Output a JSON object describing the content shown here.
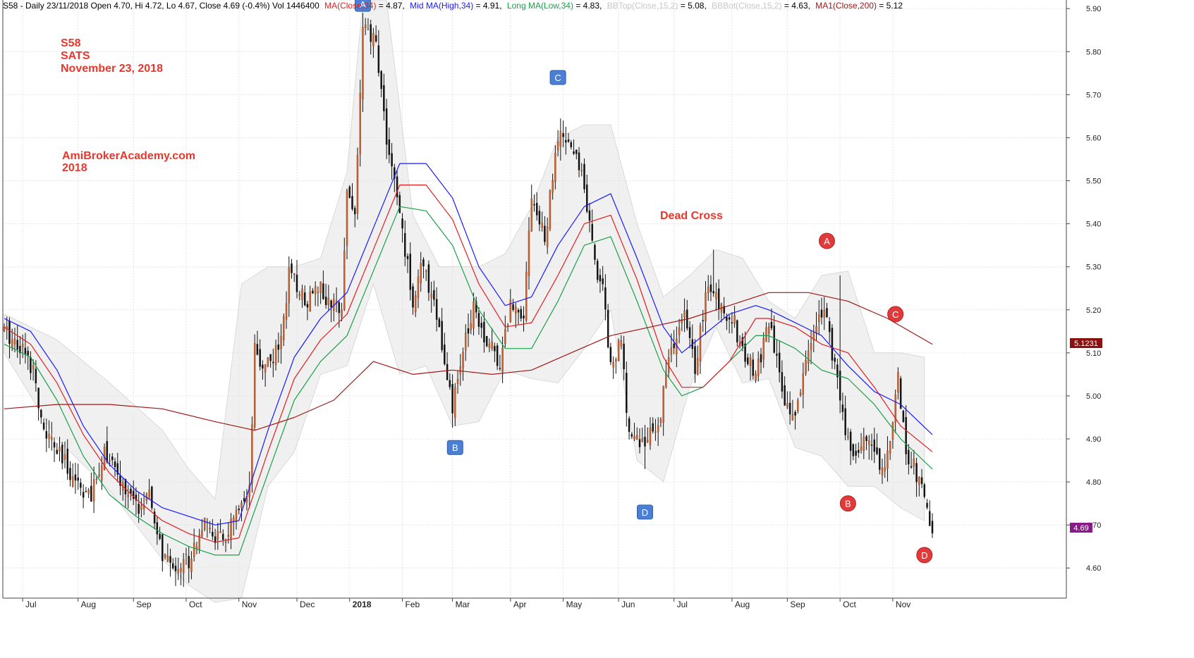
{
  "header": {
    "prefix": "S58 - Daily 23/11/2018 Open 4.70, Hi 4.72, Lo 4.67, Close 4.69 (-0.4%) Vol 1446400",
    "ma_label": "MA(Close,34)",
    "ma_value": " = 4.87,",
    "mid_label": "Mid MA(High,34)",
    "mid_value": " = 4.91,",
    "long_label": "Long MA(Low,34)",
    "long_value": " = 4.83,",
    "bbtop_label": "BBTop(Close,15,2)",
    "bbtop_value": " = 5.08,",
    "bbbot_label": "BBBot(Close,15,2)",
    "bbbot_value": " = 4.63,",
    "ma1_label": "MA1(Close,200)",
    "ma1_value": " = 5.12"
  },
  "annotations": {
    "ticker": "S58",
    "name": "SATS",
    "date": "November 23, 2018",
    "site": "AmiBrokerAcademy.com",
    "year": "2018",
    "dead_cross": "Dead Cross"
  },
  "price_tags": {
    "ma200": "5.1231",
    "last": "4.69"
  },
  "colors": {
    "ma34": "#e02020",
    "mid": "#1a1aff",
    "long": "#1aa04a",
    "ma200": "#a01818",
    "band_fill": "#e3e3e3",
    "candle": "#c86432",
    "blue_marker": "#4a7fd4",
    "red_marker": "#e03a3a",
    "annotation": "#e8372c"
  },
  "chart_data": {
    "type": "candlestick",
    "y_axis": {
      "min": 4.53,
      "max": 5.92,
      "ticks": [
        4.6,
        4.7,
        4.8,
        4.9,
        5.0,
        5.1,
        5.2,
        5.3,
        5.4,
        5.5,
        5.6,
        5.7,
        5.8,
        5.9
      ],
      "tick_labels": [
        "4.60",
        "4.70",
        "4.80",
        "4.90",
        "5.00",
        "5.10",
        "5.20",
        "5.30",
        "5.40",
        "5.50",
        "5.60",
        "5.70",
        "5.80",
        "5.90"
      ]
    },
    "x_axis": {
      "labels": [
        "Jul",
        "Aug",
        "Sep",
        "Oct",
        "Nov",
        "Dec",
        "2018",
        "Feb",
        "Mar",
        "Apr",
        "May",
        "Jun",
        "Jul",
        "Aug",
        "Sep",
        "Oct",
        "Nov"
      ],
      "bold": [
        false,
        false,
        false,
        false,
        false,
        false,
        true,
        false,
        false,
        false,
        false,
        false,
        false,
        false,
        false,
        false,
        false
      ],
      "index": [
        7,
        28,
        49,
        69,
        89,
        111,
        131,
        151,
        170,
        192,
        212,
        233,
        254,
        276,
        297,
        317,
        337
      ]
    },
    "close_path": [
      [
        0,
        5.15
      ],
      [
        6,
        5.12
      ],
      [
        12,
        5.05
      ],
      [
        14,
        4.93
      ],
      [
        22,
        4.85
      ],
      [
        28,
        4.8
      ],
      [
        33,
        4.76
      ],
      [
        38,
        4.88
      ],
      [
        42,
        4.82
      ],
      [
        50,
        4.74
      ],
      [
        55,
        4.76
      ],
      [
        60,
        4.63
      ],
      [
        63,
        4.6
      ],
      [
        70,
        4.62
      ],
      [
        75,
        4.7
      ],
      [
        83,
        4.66
      ],
      [
        88,
        4.72
      ],
      [
        91,
        4.74
      ],
      [
        93,
        4.77
      ],
      [
        95,
        5.1
      ],
      [
        97,
        5.07
      ],
      [
        104,
        5.1
      ],
      [
        108,
        5.28
      ],
      [
        115,
        5.22
      ],
      [
        118,
        5.27
      ],
      [
        124,
        5.2
      ],
      [
        128,
        5.22
      ],
      [
        130,
        5.48
      ],
      [
        133,
        5.42
      ],
      [
        136,
        5.85
      ],
      [
        141,
        5.82
      ],
      [
        145,
        5.6
      ],
      [
        150,
        5.42
      ],
      [
        155,
        5.22
      ],
      [
        158,
        5.3
      ],
      [
        163,
        5.23
      ],
      [
        168,
        5.03
      ],
      [
        170,
        4.97
      ],
      [
        174,
        5.1
      ],
      [
        178,
        5.22
      ],
      [
        182,
        5.14
      ],
      [
        188,
        5.08
      ],
      [
        192,
        5.21
      ],
      [
        197,
        5.2
      ],
      [
        200,
        5.47
      ],
      [
        205,
        5.36
      ],
      [
        210,
        5.6
      ],
      [
        215,
        5.58
      ],
      [
        220,
        5.5
      ],
      [
        224,
        5.3
      ],
      [
        227,
        5.26
      ],
      [
        230,
        5.07
      ],
      [
        234,
        5.13
      ],
      [
        236,
        4.95
      ],
      [
        241,
        4.89
      ],
      [
        248,
        4.92
      ],
      [
        251,
        5.06
      ],
      [
        255,
        5.14
      ],
      [
        258,
        5.18
      ],
      [
        262,
        5.07
      ],
      [
        267,
        5.26
      ],
      [
        272,
        5.2
      ],
      [
        276,
        5.19
      ],
      [
        280,
        5.1
      ],
      [
        285,
        5.05
      ],
      [
        290,
        5.17
      ],
      [
        294,
        5.04
      ],
      [
        299,
        4.94
      ],
      [
        303,
        5.05
      ],
      [
        308,
        5.17
      ],
      [
        311,
        5.22
      ],
      [
        315,
        5.06
      ],
      [
        318,
        4.95
      ],
      [
        322,
        4.86
      ],
      [
        328,
        4.91
      ],
      [
        333,
        4.83
      ],
      [
        337,
        4.92
      ],
      [
        339,
        5.05
      ],
      [
        342,
        4.87
      ],
      [
        346,
        4.82
      ],
      [
        349,
        4.75
      ],
      [
        352,
        4.69
      ]
    ],
    "ma34_path": [
      [
        0,
        5.16
      ],
      [
        10,
        5.12
      ],
      [
        20,
        5.03
      ],
      [
        30,
        4.91
      ],
      [
        40,
        4.82
      ],
      [
        50,
        4.76
      ],
      [
        60,
        4.71
      ],
      [
        70,
        4.68
      ],
      [
        80,
        4.66
      ],
      [
        89,
        4.67
      ],
      [
        100,
        4.87
      ],
      [
        110,
        5.04
      ],
      [
        120,
        5.13
      ],
      [
        130,
        5.19
      ],
      [
        140,
        5.34
      ],
      [
        150,
        5.49
      ],
      [
        160,
        5.49
      ],
      [
        170,
        5.41
      ],
      [
        180,
        5.26
      ],
      [
        190,
        5.16
      ],
      [
        200,
        5.17
      ],
      [
        210,
        5.28
      ],
      [
        220,
        5.4
      ],
      [
        230,
        5.42
      ],
      [
        240,
        5.27
      ],
      [
        250,
        5.09
      ],
      [
        257,
        5.02
      ],
      [
        265,
        5.02
      ],
      [
        275,
        5.08
      ],
      [
        285,
        5.18
      ],
      [
        290,
        5.18
      ],
      [
        300,
        5.16
      ],
      [
        310,
        5.12
      ],
      [
        320,
        5.1
      ],
      [
        330,
        5.02
      ],
      [
        340,
        4.93
      ],
      [
        352,
        4.87
      ]
    ],
    "mid_path": [
      [
        0,
        5.18
      ],
      [
        10,
        5.15
      ],
      [
        20,
        5.06
      ],
      [
        30,
        4.93
      ],
      [
        40,
        4.84
      ],
      [
        50,
        4.78
      ],
      [
        60,
        4.74
      ],
      [
        70,
        4.72
      ],
      [
        80,
        4.7
      ],
      [
        89,
        4.71
      ],
      [
        100,
        4.92
      ],
      [
        110,
        5.09
      ],
      [
        120,
        5.18
      ],
      [
        130,
        5.24
      ],
      [
        140,
        5.39
      ],
      [
        150,
        5.54
      ],
      [
        160,
        5.54
      ],
      [
        170,
        5.46
      ],
      [
        180,
        5.3
      ],
      [
        190,
        5.21
      ],
      [
        200,
        5.23
      ],
      [
        210,
        5.35
      ],
      [
        220,
        5.44
      ],
      [
        230,
        5.47
      ],
      [
        240,
        5.32
      ],
      [
        250,
        5.16
      ],
      [
        257,
        5.1
      ],
      [
        265,
        5.14
      ],
      [
        275,
        5.19
      ],
      [
        285,
        5.21
      ],
      [
        290,
        5.2
      ],
      [
        300,
        5.17
      ],
      [
        310,
        5.14
      ],
      [
        320,
        5.07
      ],
      [
        330,
        5.01
      ],
      [
        340,
        4.98
      ],
      [
        352,
        4.91
      ]
    ],
    "long_path": [
      [
        0,
        5.12
      ],
      [
        10,
        5.09
      ],
      [
        20,
        4.99
      ],
      [
        30,
        4.86
      ],
      [
        40,
        4.77
      ],
      [
        50,
        4.72
      ],
      [
        60,
        4.68
      ],
      [
        70,
        4.65
      ],
      [
        80,
        4.63
      ],
      [
        89,
        4.63
      ],
      [
        100,
        4.82
      ],
      [
        110,
        4.99
      ],
      [
        120,
        5.08
      ],
      [
        130,
        5.14
      ],
      [
        140,
        5.29
      ],
      [
        150,
        5.44
      ],
      [
        160,
        5.43
      ],
      [
        170,
        5.35
      ],
      [
        180,
        5.2
      ],
      [
        190,
        5.11
      ],
      [
        200,
        5.11
      ],
      [
        210,
        5.22
      ],
      [
        220,
        5.35
      ],
      [
        230,
        5.37
      ],
      [
        240,
        5.22
      ],
      [
        250,
        5.06
      ],
      [
        257,
        5.0
      ],
      [
        265,
        5.02
      ],
      [
        275,
        5.08
      ],
      [
        285,
        5.14
      ],
      [
        290,
        5.14
      ],
      [
        300,
        5.11
      ],
      [
        310,
        5.06
      ],
      [
        320,
        5.04
      ],
      [
        330,
        4.98
      ],
      [
        340,
        4.9
      ],
      [
        352,
        4.83
      ]
    ],
    "ma200_path": [
      [
        0,
        4.97
      ],
      [
        20,
        4.98
      ],
      [
        40,
        4.98
      ],
      [
        60,
        4.97
      ],
      [
        80,
        4.94
      ],
      [
        95,
        4.92
      ],
      [
        110,
        4.95
      ],
      [
        125,
        4.99
      ],
      [
        140,
        5.08
      ],
      [
        155,
        5.05
      ],
      [
        170,
        5.06
      ],
      [
        185,
        5.05
      ],
      [
        200,
        5.06
      ],
      [
        215,
        5.1
      ],
      [
        230,
        5.14
      ],
      [
        245,
        5.16
      ],
      [
        260,
        5.18
      ],
      [
        275,
        5.21
      ],
      [
        290,
        5.24
      ],
      [
        305,
        5.24
      ],
      [
        320,
        5.22
      ],
      [
        335,
        5.18
      ],
      [
        352,
        5.12
      ]
    ],
    "band_upper": [
      [
        0,
        5.19
      ],
      [
        20,
        5.13
      ],
      [
        40,
        5.03
      ],
      [
        60,
        4.92
      ],
      [
        70,
        4.83
      ],
      [
        80,
        4.76
      ],
      [
        90,
        5.26
      ],
      [
        100,
        5.3
      ],
      [
        110,
        5.3
      ],
      [
        120,
        5.32
      ],
      [
        130,
        5.52
      ],
      [
        136,
        5.92
      ],
      [
        145,
        5.92
      ],
      [
        155,
        5.42
      ],
      [
        165,
        5.3
      ],
      [
        180,
        5.3
      ],
      [
        190,
        5.33
      ],
      [
        200,
        5.44
      ],
      [
        210,
        5.6
      ],
      [
        220,
        5.63
      ],
      [
        230,
        5.63
      ],
      [
        240,
        5.4
      ],
      [
        250,
        5.23
      ],
      [
        260,
        5.28
      ],
      [
        270,
        5.34
      ],
      [
        280,
        5.32
      ],
      [
        290,
        5.22
      ],
      [
        300,
        5.18
      ],
      [
        310,
        5.28
      ],
      [
        320,
        5.29
      ],
      [
        330,
        5.1
      ],
      [
        340,
        5.1
      ],
      [
        349,
        5.09
      ]
    ],
    "band_lower": [
      [
        0,
        5.1
      ],
      [
        20,
        4.9
      ],
      [
        40,
        4.78
      ],
      [
        50,
        4.7
      ],
      [
        60,
        4.62
      ],
      [
        70,
        4.56
      ],
      [
        80,
        4.52
      ],
      [
        90,
        4.53
      ],
      [
        100,
        4.79
      ],
      [
        110,
        4.87
      ],
      [
        120,
        5.05
      ],
      [
        130,
        5.07
      ],
      [
        140,
        5.26
      ],
      [
        150,
        5.05
      ],
      [
        160,
        5.07
      ],
      [
        170,
        4.93
      ],
      [
        180,
        4.94
      ],
      [
        190,
        5.06
      ],
      [
        200,
        5.04
      ],
      [
        210,
        5.03
      ],
      [
        220,
        5.11
      ],
      [
        230,
        5.2
      ],
      [
        240,
        4.85
      ],
      [
        250,
        4.8
      ],
      [
        260,
        5.02
      ],
      [
        270,
        5.16
      ],
      [
        280,
        5.03
      ],
      [
        290,
        5.04
      ],
      [
        300,
        4.88
      ],
      [
        310,
        4.86
      ],
      [
        320,
        4.79
      ],
      [
        330,
        4.79
      ],
      [
        340,
        4.74
      ],
      [
        349,
        4.71
      ]
    ],
    "extremes": [
      [
        142,
        5.85,
        "high"
      ],
      [
        212,
        5.64,
        "high"
      ],
      [
        171,
        4.93,
        "low"
      ],
      [
        243,
        4.83,
        "low"
      ],
      [
        63,
        4.58,
        "low"
      ],
      [
        317,
        5.28,
        "high"
      ],
      [
        352,
        4.67,
        "low"
      ],
      [
        269,
        5.34,
        "high"
      ]
    ],
    "markers": [
      {
        "label": "A",
        "x": 136,
        "y": 5.91,
        "color": "blue"
      },
      {
        "label": "B",
        "x": 171,
        "y": 4.88,
        "color": "blue"
      },
      {
        "label": "C",
        "x": 210,
        "y": 5.74,
        "color": "blue"
      },
      {
        "label": "D",
        "x": 243,
        "y": 4.73,
        "color": "blue"
      },
      {
        "label": "A",
        "x": 312,
        "y": 5.36,
        "color": "red"
      },
      {
        "label": "B",
        "x": 320,
        "y": 4.75,
        "color": "red"
      },
      {
        "label": "C",
        "x": 338,
        "y": 5.19,
        "color": "red"
      },
      {
        "label": "D",
        "x": 349,
        "y": 4.63,
        "color": "red"
      }
    ],
    "n_bars": 353
  }
}
